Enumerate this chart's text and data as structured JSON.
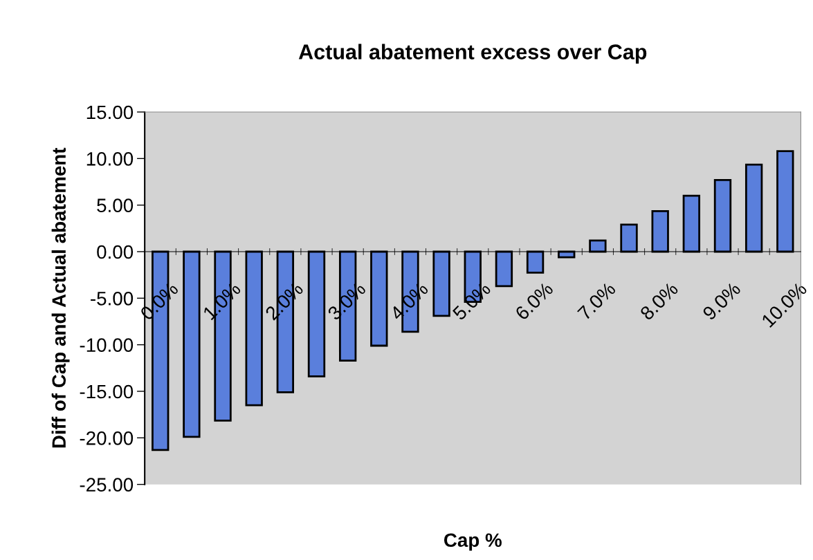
{
  "chart_data": {
    "type": "bar",
    "title": "Actual abatement excess over Cap",
    "xlabel": "Cap %",
    "ylabel": "Diff of Cap and Actual abatement",
    "categories": [
      "0.0%",
      null,
      "1.0%",
      null,
      "2.0%",
      null,
      "3.0%",
      null,
      "4.0%",
      null,
      "5.0%",
      null,
      "6.0%",
      null,
      "7.0%",
      null,
      "8.0%",
      null,
      "9.0%",
      null,
      "10.0%"
    ],
    "values": [
      -21.3,
      -19.9,
      -18.15,
      -16.5,
      -15.1,
      -13.4,
      -11.7,
      -10.1,
      -8.6,
      -6.9,
      -5.4,
      -3.7,
      -2.25,
      -0.6,
      1.2,
      2.9,
      4.35,
      6.0,
      7.7,
      9.35,
      10.8
    ],
    "color": "#5a7fdc",
    "ylim": [
      -25,
      15
    ],
    "yticks": [
      {
        "value": -25,
        "label": "-25.00"
      },
      {
        "value": -20,
        "label": "-20.00"
      },
      {
        "value": -15,
        "label": "-15.00"
      },
      {
        "value": -10,
        "label": "-10.00"
      },
      {
        "value": -5,
        "label": "-5.00"
      },
      {
        "value": 0,
        "label": "0.00"
      },
      {
        "value": 5,
        "label": "5.00"
      },
      {
        "value": 10,
        "label": "10.00"
      },
      {
        "value": 15,
        "label": "15.00"
      }
    ],
    "grid": false,
    "legend": false
  }
}
